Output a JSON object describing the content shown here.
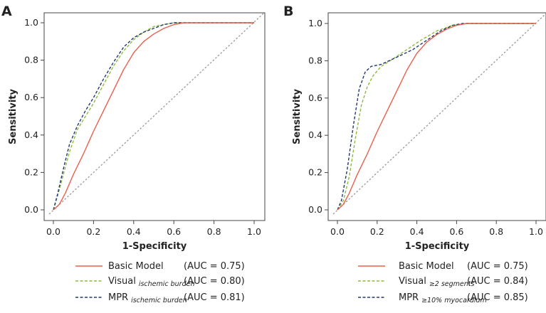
{
  "chart_data": [
    {
      "type": "line",
      "panel": "A",
      "xlabel": "1-Specificity",
      "ylabel": "Sensitivity",
      "xlim": [
        0,
        1
      ],
      "ylim": [
        0,
        1
      ],
      "x_ticks": [
        "0.0",
        "0.2",
        "0.4",
        "0.6",
        "0.8",
        "1.0"
      ],
      "y_ticks": [
        "0.0",
        "0.2",
        "0.4",
        "0.6",
        "0.8",
        "1.0"
      ],
      "reference_line": {
        "from": [
          0,
          0
        ],
        "to": [
          1,
          1
        ],
        "color": "#999999",
        "style": "dotted"
      },
      "series": [
        {
          "name": "Basic Model",
          "sub": "",
          "auc": "(AUC = 0.75)",
          "color": "#e8604c",
          "style": "solid",
          "points": [
            [
              0,
              0
            ],
            [
              0.03,
              0.03
            ],
            [
              0.06,
              0.09
            ],
            [
              0.1,
              0.19
            ],
            [
              0.15,
              0.3
            ],
            [
              0.2,
              0.42
            ],
            [
              0.25,
              0.53
            ],
            [
              0.3,
              0.64
            ],
            [
              0.35,
              0.75
            ],
            [
              0.4,
              0.84
            ],
            [
              0.45,
              0.9
            ],
            [
              0.5,
              0.94
            ],
            [
              0.55,
              0.97
            ],
            [
              0.6,
              0.99
            ],
            [
              0.65,
              1.0
            ],
            [
              1.0,
              1.0
            ]
          ]
        },
        {
          "name": "Visual",
          "sub": "ischemic burden",
          "auc": "(AUC = 0.80)",
          "color": "#8dba3a",
          "style": "dashed",
          "points": [
            [
              0,
              0
            ],
            [
              0.02,
              0.07
            ],
            [
              0.05,
              0.19
            ],
            [
              0.08,
              0.31
            ],
            [
              0.12,
              0.43
            ],
            [
              0.16,
              0.5
            ],
            [
              0.2,
              0.57
            ],
            [
              0.25,
              0.67
            ],
            [
              0.3,
              0.77
            ],
            [
              0.35,
              0.85
            ],
            [
              0.4,
              0.91
            ],
            [
              0.45,
              0.95
            ],
            [
              0.5,
              0.98
            ],
            [
              0.55,
              0.99
            ],
            [
              0.6,
              1.0
            ],
            [
              1.0,
              1.0
            ]
          ]
        },
        {
          "name": "MPR",
          "sub": "ischemic burden",
          "auc": "(AUC = 0.81)",
          "color": "#233872",
          "style": "dashed",
          "points": [
            [
              0,
              0
            ],
            [
              0.02,
              0.08
            ],
            [
              0.05,
              0.22
            ],
            [
              0.08,
              0.35
            ],
            [
              0.12,
              0.45
            ],
            [
              0.16,
              0.53
            ],
            [
              0.2,
              0.6
            ],
            [
              0.25,
              0.7
            ],
            [
              0.3,
              0.79
            ],
            [
              0.35,
              0.87
            ],
            [
              0.4,
              0.92
            ],
            [
              0.45,
              0.95
            ],
            [
              0.5,
              0.97
            ],
            [
              0.55,
              0.99
            ],
            [
              0.6,
              1.0
            ],
            [
              1.0,
              1.0
            ]
          ]
        }
      ]
    },
    {
      "type": "line",
      "panel": "B",
      "xlabel": "1-Specificity",
      "ylabel": "Sensitivity",
      "xlim": [
        0,
        1
      ],
      "ylim": [
        0,
        1
      ],
      "x_ticks": [
        "0.0",
        "0.2",
        "0.4",
        "0.6",
        "0.8",
        "1.0"
      ],
      "y_ticks": [
        "0.0",
        "0.2",
        "0.4",
        "0.6",
        "0.8",
        "1.0"
      ],
      "reference_line": {
        "from": [
          0,
          0
        ],
        "to": [
          1,
          1
        ],
        "color": "#999999",
        "style": "dotted"
      },
      "series": [
        {
          "name": "Basic Model",
          "sub": "",
          "auc": "(AUC = 0.75)",
          "color": "#e8604c",
          "style": "solid",
          "points": [
            [
              0,
              0
            ],
            [
              0.03,
              0.03
            ],
            [
              0.06,
              0.09
            ],
            [
              0.1,
              0.19
            ],
            [
              0.15,
              0.3
            ],
            [
              0.2,
              0.42
            ],
            [
              0.25,
              0.53
            ],
            [
              0.3,
              0.64
            ],
            [
              0.35,
              0.75
            ],
            [
              0.4,
              0.84
            ],
            [
              0.45,
              0.9
            ],
            [
              0.5,
              0.94
            ],
            [
              0.55,
              0.97
            ],
            [
              0.6,
              0.99
            ],
            [
              0.65,
              1.0
            ],
            [
              1.0,
              1.0
            ]
          ]
        },
        {
          "name": "Visual",
          "sub": "≥2 segments",
          "auc": "(AUC = 0.84)",
          "color": "#8dba3a",
          "style": "dashed",
          "points": [
            [
              0,
              0
            ],
            [
              0.03,
              0.05
            ],
            [
              0.06,
              0.18
            ],
            [
              0.09,
              0.38
            ],
            [
              0.12,
              0.56
            ],
            [
              0.15,
              0.66
            ],
            [
              0.18,
              0.72
            ],
            [
              0.22,
              0.77
            ],
            [
              0.28,
              0.81
            ],
            [
              0.35,
              0.86
            ],
            [
              0.42,
              0.91
            ],
            [
              0.5,
              0.96
            ],
            [
              0.58,
              0.99
            ],
            [
              0.65,
              1.0
            ],
            [
              1.0,
              1.0
            ]
          ]
        },
        {
          "name": "MPR",
          "sub": "≥10% myocardium",
          "auc": "(AUC = 0.85)",
          "color": "#233872",
          "style": "dashed",
          "points": [
            [
              0,
              0
            ],
            [
              0.02,
              0.05
            ],
            [
              0.05,
              0.22
            ],
            [
              0.08,
              0.45
            ],
            [
              0.11,
              0.65
            ],
            [
              0.14,
              0.74
            ],
            [
              0.17,
              0.77
            ],
            [
              0.22,
              0.78
            ],
            [
              0.3,
              0.82
            ],
            [
              0.38,
              0.86
            ],
            [
              0.45,
              0.91
            ],
            [
              0.52,
              0.96
            ],
            [
              0.58,
              0.99
            ],
            [
              0.63,
              1.0
            ],
            [
              1.0,
              1.0
            ]
          ]
        }
      ]
    }
  ]
}
